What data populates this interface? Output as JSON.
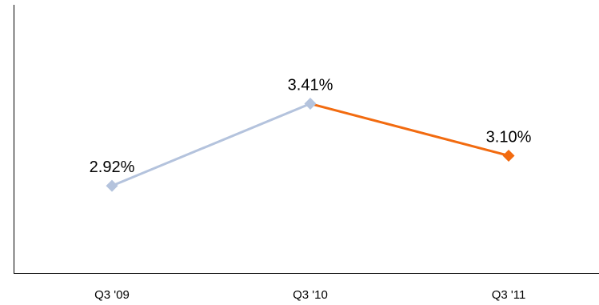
{
  "chart_data": {
    "type": "line",
    "categories": [
      "Q3 '09",
      "Q3 '10",
      "Q3 '11"
    ],
    "values": [
      2.92,
      3.41,
      3.1
    ],
    "data_labels": [
      "2.92%",
      "3.41%",
      "3.10%"
    ],
    "ylim": [
      2.4,
      4.0
    ],
    "grid": false,
    "segment_colors": [
      "#b4c3dd",
      "#f26b10"
    ],
    "marker_colors": [
      "#b4c3dd",
      "#b4c3dd",
      "#f26b10"
    ]
  }
}
